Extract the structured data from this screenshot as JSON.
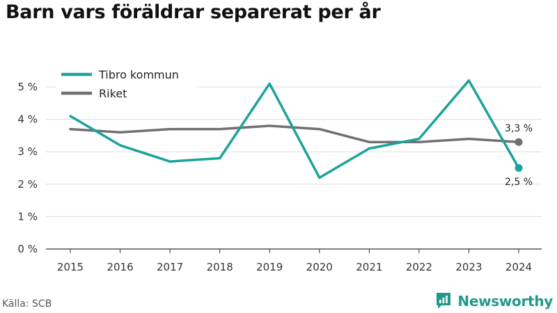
{
  "title": "Barn vars föräldrar separerat per år",
  "source": "Källa: SCB",
  "brand": "Newsworthy",
  "colors": {
    "tibro": "#1aa39a",
    "riket": "#707074",
    "brand": "#20998d"
  },
  "chart_data": {
    "type": "line",
    "x": [
      2015,
      2016,
      2017,
      2018,
      2019,
      2020,
      2021,
      2022,
      2023,
      2024
    ],
    "series": [
      {
        "name": "Tibro kommun",
        "values": [
          4.1,
          3.2,
          2.7,
          2.8,
          5.1,
          2.2,
          3.1,
          3.4,
          5.2,
          2.5
        ]
      },
      {
        "name": "Riket",
        "values": [
          3.7,
          3.6,
          3.7,
          3.7,
          3.8,
          3.7,
          3.3,
          3.3,
          3.4,
          3.3
        ]
      }
    ],
    "y_ticks": [
      0,
      1,
      2,
      3,
      4,
      5
    ],
    "y_tick_labels": [
      "0 %",
      "1 %",
      "2 %",
      "3 %",
      "4 %",
      "5 %"
    ],
    "ylim": [
      0,
      5
    ],
    "end_labels": [
      "2,5 %",
      "3,3 %"
    ],
    "grid": true,
    "legend_position": "top-left"
  }
}
